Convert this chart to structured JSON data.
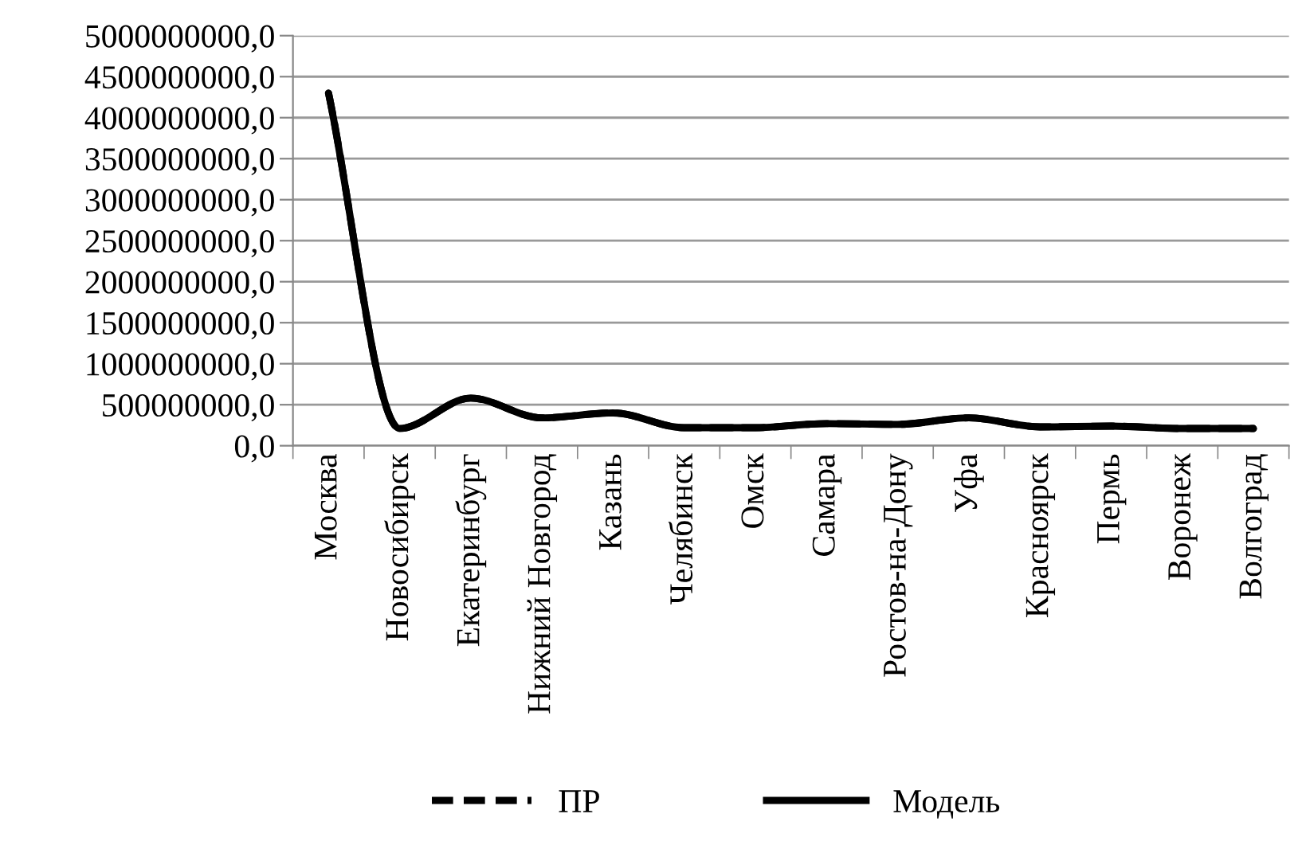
{
  "chart_data": {
    "type": "line",
    "categories": [
      "Москва",
      "Новосибирск",
      "Екатеринбург",
      "Нижний Новгород",
      "Казань",
      "Челябинск",
      "Омск",
      "Самара",
      "Ростов-на-Дону",
      "Уфа",
      "Красноярск",
      "Пермь",
      "Воронеж",
      "Волгоград"
    ],
    "series": [
      {
        "name": "ПР",
        "color": "#000000",
        "line_style": "dashed",
        "values": [
          4300000000,
          210000000,
          580000000,
          340000000,
          400000000,
          220000000,
          220000000,
          270000000,
          260000000,
          340000000,
          230000000,
          240000000,
          210000000,
          210000000
        ]
      },
      {
        "name": "Модель",
        "color": "#000000",
        "line_style": "solid",
        "values": [
          4300000000,
          210000000,
          580000000,
          340000000,
          400000000,
          220000000,
          220000000,
          270000000,
          260000000,
          340000000,
          230000000,
          240000000,
          210000000,
          210000000
        ]
      }
    ],
    "ylim": [
      0,
      5000000000
    ],
    "yticks": [
      {
        "value": 0,
        "label": "0,0"
      },
      {
        "value": 500000000,
        "label": "500000000,0"
      },
      {
        "value": 1000000000,
        "label": "1000000000,0"
      },
      {
        "value": 1500000000,
        "label": "1500000000,0"
      },
      {
        "value": 2000000000,
        "label": "2000000000,0"
      },
      {
        "value": 2500000000,
        "label": "2500000000,0"
      },
      {
        "value": 3000000000,
        "label": "3000000000,0"
      },
      {
        "value": 3500000000,
        "label": "3500000000,0"
      },
      {
        "value": 4000000000,
        "label": "4000000000,0"
      },
      {
        "value": 4500000000,
        "label": "4500000000,0"
      },
      {
        "value": 5000000000,
        "label": "5000000000,0"
      }
    ],
    "grid": "y",
    "legend": "bottom",
    "marker": "none"
  }
}
